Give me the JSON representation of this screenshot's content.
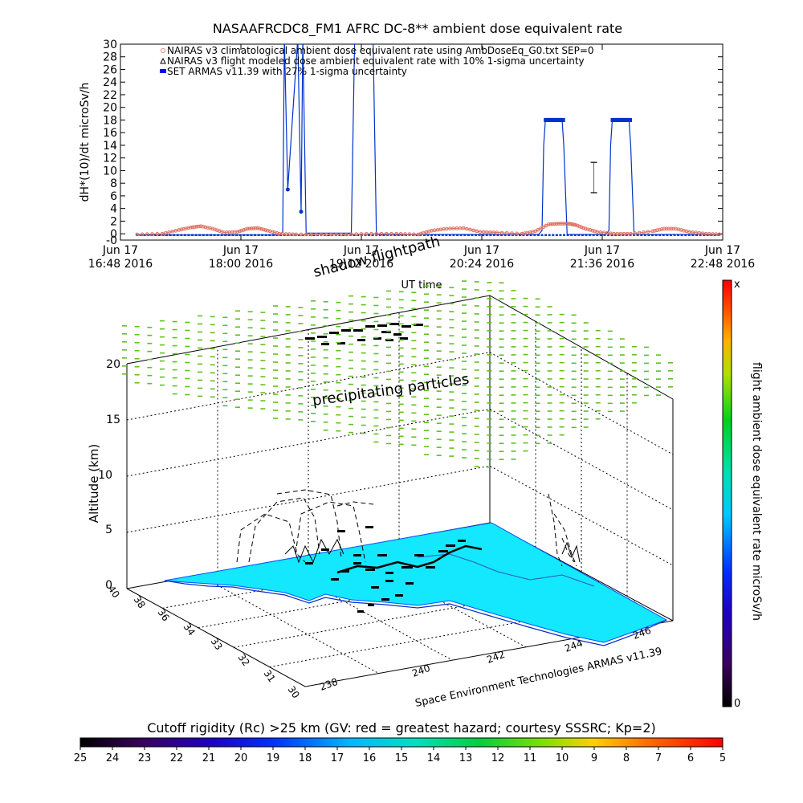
{
  "chart_data": [
    {
      "type": "line",
      "title": "NASAAFRCDC8_FM1 AFRC DC-8** ambient dose equivalent rate",
      "ylabel": "dH*(10)/dt microSv/h",
      "xlabel": "UT time",
      "ylim": [
        -1,
        30
      ],
      "yticks": [
        "-0",
        "0",
        "2",
        "4",
        "6",
        "8",
        "10",
        "12",
        "14",
        "16",
        "18",
        "20",
        "22",
        "24",
        "26",
        "28",
        "30"
      ],
      "ytick_values": [
        -1,
        0,
        2,
        4,
        6,
        8,
        10,
        12,
        14,
        16,
        18,
        20,
        22,
        24,
        26,
        28,
        30
      ],
      "xlim": [
        0,
        360
      ],
      "xticks": [
        {
          "top": "Jun 17",
          "bottom": "16:48 2016",
          "v": 0
        },
        {
          "top": "Jun 17",
          "bottom": "18:00 2016",
          "v": 72
        },
        {
          "top": "Jun 17",
          "bottom": "19:12 2016",
          "v": 144
        },
        {
          "top": "Jun 17",
          "bottom": "20:24 2016",
          "v": 216
        },
        {
          "top": "Jun 17",
          "bottom": "21:36 2016",
          "v": 288
        },
        {
          "top": "Jun 17",
          "bottom": "22:48 2016",
          "v": 360
        }
      ],
      "legend": [
        {
          "label": "NAIRAS v3 climatological ambient dose equivalent rate using AmbDoseEq_G0.txt SEP=0",
          "color": "#e08070",
          "marker": "o"
        },
        {
          "label": "NAIRAS v3 flight modeled dose ambient equivalent rate with 10% 1-sigma uncertainty",
          "color": "#000000",
          "marker": "triangle"
        },
        {
          "label": "SET ARMAS v11.39 with 27% 1-sigma uncertainty",
          "color": "#0000ff",
          "marker": "square"
        }
      ],
      "legend_position": "top-left",
      "series": [
        {
          "name": "SET ARMAS v11.39 with 27% 1-sigma uncertainty",
          "color": "#0033cc",
          "x": [
            10,
            95,
            97,
            98,
            100,
            106,
            108,
            109,
            111,
            138,
            140,
            150,
            151,
            153,
            250,
            252,
            253,
            254,
            255,
            264,
            265,
            267,
            290,
            292,
            293,
            294,
            295,
            304,
            305,
            307,
            360
          ],
          "y": [
            -0.2,
            -0.2,
            0.3,
            31,
            7.0,
            31,
            3.5,
            31,
            0.1,
            0.1,
            31,
            31,
            31,
            -0.1,
            -0.1,
            0.5,
            14,
            18,
            18,
            18,
            14,
            -0.1,
            -0.1,
            0.5,
            14,
            18,
            18,
            18,
            14,
            -0.1,
            -0.1
          ]
        },
        {
          "name": "NAIRAS v3 climatological ambient dose equivalent rate using AmbDoseEq_G0.txt SEP=0",
          "color": "#e07060",
          "x": [
            10,
            25,
            35,
            42,
            48,
            55,
            62,
            70,
            76,
            82,
            88,
            95,
            105,
            120,
            135,
            150,
            165,
            178,
            186,
            195,
            205,
            215,
            225,
            240,
            248,
            256,
            262,
            268,
            272,
            278,
            285,
            295,
            305,
            318,
            325,
            332,
            340,
            350,
            360
          ],
          "y": [
            -0.1,
            0.0,
            0.6,
            1.0,
            1.2,
            0.8,
            0.2,
            0.3,
            0.8,
            0.9,
            0.5,
            0.0,
            -0.1,
            -0.1,
            -0.1,
            0.0,
            0.0,
            -0.1,
            0.5,
            0.8,
            0.9,
            0.3,
            0.2,
            0.0,
            0.4,
            1.5,
            1.6,
            1.6,
            1.4,
            0.8,
            0.3,
            0.0,
            0.0,
            0.4,
            0.8,
            0.8,
            0.3,
            0.0,
            -0.1
          ]
        },
        {
          "name": "NAIRAS v3 flight modeled dose ambient equivalent rate with 10% 1-sigma uncertainty",
          "color": "#000000",
          "x": [
            283,
            283
          ],
          "y": [
            11.3,
            6.5
          ]
        }
      ]
    },
    {
      "type": "scatter",
      "subtype": "3d-perspective",
      "zlabel": "Altitude (km)",
      "zticks": [
        "0",
        "5",
        "10",
        "15",
        "20"
      ],
      "xticks": [
        "238",
        "240",
        "242",
        "244",
        "246"
      ],
      "yticks": [
        "30",
        "31",
        "32",
        "33",
        "34",
        "36",
        "38",
        "40"
      ],
      "annotations": [
        "shadow flightpath",
        "precipitating particles"
      ],
      "credit": "Space Environment Technologies ARMAS v11.39",
      "colorbar_right": {
        "label": "flight ambient dose equivalent rate microSv/h",
        "top": "x",
        "bottom": "0"
      },
      "colorbar_bottom": {
        "label": "Cutoff rigidity (Rc) >25 km (GV: red = greatest hazard; courtesy SSSRC; Kp=2)",
        "ticks": [
          "25",
          "24",
          "23",
          "22",
          "21",
          "20",
          "19",
          "18",
          "17",
          "16",
          "15",
          "14",
          "13",
          "12",
          "11",
          "10",
          "9",
          "8",
          "7",
          "6",
          "5"
        ]
      }
    }
  ]
}
